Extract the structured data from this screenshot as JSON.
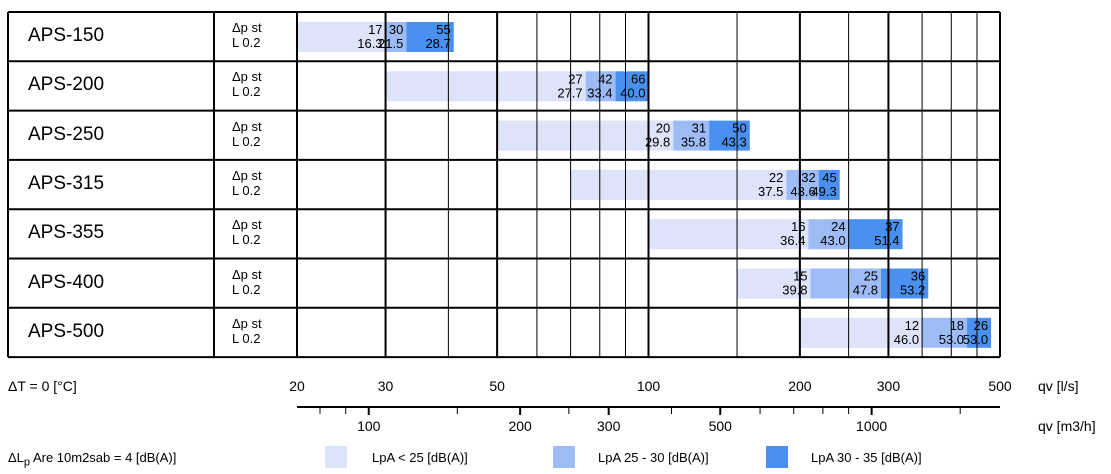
{
  "chart_data": {
    "type": "bar",
    "title": "",
    "row_param_labels": {
      "dp": "Δp st",
      "lw": "L",
      "lw_sub": "0.2"
    },
    "models": [
      {
        "name": "APS-150",
        "segments": [
          {
            "from": 20,
            "to": 30,
            "dp": "17",
            "lw": "16.3",
            "class": "low"
          },
          {
            "from": 30,
            "to": 33,
            "dp": "30",
            "lw": "21.5",
            "class": "mid"
          },
          {
            "from": 33,
            "to": 41,
            "dp": "55",
            "lw": "28.7",
            "class": "high"
          }
        ]
      },
      {
        "name": "APS-200",
        "segments": [
          {
            "from": 30,
            "to": 75,
            "dp": "27",
            "lw": "27.7",
            "class": "low"
          },
          {
            "from": 75,
            "to": 86,
            "dp": "42",
            "lw": "33.4",
            "class": "mid"
          },
          {
            "from": 86,
            "to": 100,
            "dp": "66",
            "lw": "40.0",
            "class": "high"
          }
        ]
      },
      {
        "name": "APS-250",
        "segments": [
          {
            "from": 50,
            "to": 112,
            "dp": "20",
            "lw": "29.8",
            "class": "low"
          },
          {
            "from": 112,
            "to": 132,
            "dp": "31",
            "lw": "35.8",
            "class": "mid"
          },
          {
            "from": 132,
            "to": 159,
            "dp": "50",
            "lw": "43.3",
            "class": "high"
          }
        ]
      },
      {
        "name": "APS-315",
        "segments": [
          {
            "from": 70,
            "to": 188,
            "dp": "22",
            "lw": "37.5",
            "class": "low"
          },
          {
            "from": 188,
            "to": 218,
            "dp": "32",
            "lw": "43.6",
            "class": "mid"
          },
          {
            "from": 218,
            "to": 240,
            "dp": "45",
            "lw": "49.3",
            "class": "high"
          }
        ]
      },
      {
        "name": "APS-355",
        "segments": [
          {
            "from": 100,
            "to": 208,
            "dp": "16",
            "lw": "36.4",
            "class": "low"
          },
          {
            "from": 208,
            "to": 250,
            "dp": "24",
            "lw": "43.0",
            "class": "mid"
          },
          {
            "from": 250,
            "to": 320,
            "dp": "37",
            "lw": "51.4",
            "class": "high"
          }
        ]
      },
      {
        "name": "APS-400",
        "segments": [
          {
            "from": 150,
            "to": 210,
            "dp": "15",
            "lw": "39.8",
            "class": "low"
          },
          {
            "from": 210,
            "to": 290,
            "dp": "25",
            "lw": "47.8",
            "class": "mid"
          },
          {
            "from": 290,
            "to": 360,
            "dp": "36",
            "lw": "53.2",
            "class": "high"
          }
        ]
      },
      {
        "name": "APS-500",
        "segments": [
          {
            "from": 200,
            "to": 350,
            "dp": "12",
            "lw": "46.0",
            "class": "low"
          },
          {
            "from": 350,
            "to": 430,
            "dp": "18",
            "lw": "53.0",
            "class": "mid"
          },
          {
            "from": 430,
            "to": 480,
            "dp": "26",
            "lw": "53.0",
            "class": "high"
          }
        ]
      }
    ],
    "x_axis": {
      "scale": "log",
      "range": [
        20,
        500
      ],
      "label": "qv [l/s]",
      "ticks": [
        20,
        30,
        50,
        100,
        200,
        300,
        500
      ],
      "gridlines": [
        20,
        30,
        40,
        50,
        60,
        70,
        80,
        90,
        100,
        150,
        200,
        250,
        300,
        350,
        400,
        450,
        500
      ]
    },
    "x_axis_secondary": {
      "scale": "log",
      "label": "qv [m3/h]",
      "ticks": [
        100,
        200,
        300,
        500,
        1000
      ],
      "minor_ticks": [
        80,
        90,
        150,
        250,
        400,
        600,
        700,
        800,
        900,
        1500
      ]
    },
    "temperature_label": "ΔT = 0 [°C]",
    "correction_label": {
      "prefix": "ΔL",
      "sub": "p",
      "rest": " Are 10m2sab = 4 [dB(A)]"
    },
    "legend": [
      {
        "key": "low",
        "label": "LpA < 25 [dB(A)]",
        "color": "#dde3f8"
      },
      {
        "key": "mid",
        "label": "LpA 25 - 30 [dB(A)]",
        "color": "#9dbcf5"
      },
      {
        "key": "high",
        "label": "LpA 30 - 35 [dB(A)]",
        "color": "#4a90ee"
      }
    ],
    "grid": true
  }
}
